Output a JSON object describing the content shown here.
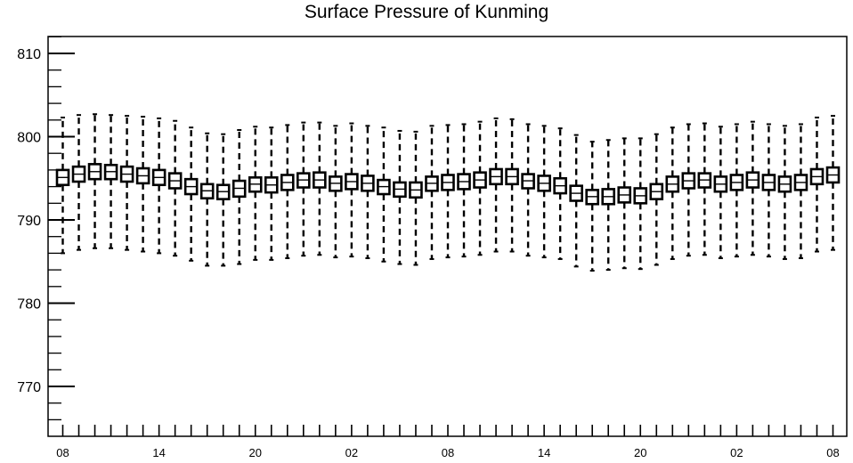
{
  "chart_data": {
    "type": "boxplot",
    "title": "Surface Pressure of Kunming",
    "xlabel": "",
    "ylabel": "",
    "ylim": [
      765,
      812
    ],
    "yticks": [
      770,
      780,
      790,
      800,
      810
    ],
    "grid": false,
    "x_tick_labels": [
      "08",
      "14",
      "20",
      "02",
      "08",
      "14",
      "20",
      "02",
      "08"
    ],
    "x_tick_every": 6,
    "boxes": [
      {
        "x": 0,
        "q1": 794.2,
        "median": 795.1,
        "q3": 796.0,
        "whisker_low": 786.0,
        "whisker_high": 802.3
      },
      {
        "x": 1,
        "q1": 794.6,
        "median": 795.5,
        "q3": 796.4,
        "whisker_low": 786.4,
        "whisker_high": 802.6
      },
      {
        "x": 2,
        "q1": 794.9,
        "median": 795.8,
        "q3": 796.7,
        "whisker_low": 786.6,
        "whisker_high": 802.7
      },
      {
        "x": 3,
        "q1": 794.9,
        "median": 795.8,
        "q3": 796.6,
        "whisker_low": 786.6,
        "whisker_high": 802.6
      },
      {
        "x": 4,
        "q1": 794.6,
        "median": 795.5,
        "q3": 796.4,
        "whisker_low": 786.4,
        "whisker_high": 802.5
      },
      {
        "x": 5,
        "q1": 794.4,
        "median": 795.3,
        "q3": 796.2,
        "whisker_low": 786.2,
        "whisker_high": 802.4
      },
      {
        "x": 6,
        "q1": 794.2,
        "median": 795.1,
        "q3": 796.0,
        "whisker_low": 786.0,
        "whisker_high": 802.2
      },
      {
        "x": 7,
        "q1": 793.8,
        "median": 794.7,
        "q3": 795.6,
        "whisker_low": 785.7,
        "whisker_high": 801.9
      },
      {
        "x": 8,
        "q1": 793.1,
        "median": 794.0,
        "q3": 794.9,
        "whisker_low": 785.1,
        "whisker_high": 801.1
      },
      {
        "x": 9,
        "q1": 792.6,
        "median": 793.5,
        "q3": 794.3,
        "whisker_low": 784.5,
        "whisker_high": 800.4
      },
      {
        "x": 10,
        "q1": 792.5,
        "median": 793.4,
        "q3": 794.2,
        "whisker_low": 784.5,
        "whisker_high": 800.3
      },
      {
        "x": 11,
        "q1": 792.8,
        "median": 793.8,
        "q3": 794.7,
        "whisker_low": 784.7,
        "whisker_high": 800.8
      },
      {
        "x": 12,
        "q1": 793.4,
        "median": 794.3,
        "q3": 795.1,
        "whisker_low": 785.2,
        "whisker_high": 801.2
      },
      {
        "x": 13,
        "q1": 793.3,
        "median": 794.2,
        "q3": 795.1,
        "whisker_low": 785.2,
        "whisker_high": 801.1
      },
      {
        "x": 14,
        "q1": 793.6,
        "median": 794.5,
        "q3": 795.4,
        "whisker_low": 785.4,
        "whisker_high": 801.4
      },
      {
        "x": 15,
        "q1": 793.9,
        "median": 794.8,
        "q3": 795.6,
        "whisker_low": 785.7,
        "whisker_high": 801.7
      },
      {
        "x": 16,
        "q1": 793.9,
        "median": 794.8,
        "q3": 795.7,
        "whisker_low": 785.8,
        "whisker_high": 801.7
      },
      {
        "x": 17,
        "q1": 793.5,
        "median": 794.4,
        "q3": 795.2,
        "whisker_low": 785.5,
        "whisker_high": 801.3
      },
      {
        "x": 18,
        "q1": 793.7,
        "median": 794.6,
        "q3": 795.5,
        "whisker_low": 785.6,
        "whisker_high": 801.6
      },
      {
        "x": 19,
        "q1": 793.5,
        "median": 794.4,
        "q3": 795.3,
        "whisker_low": 785.4,
        "whisker_high": 801.3
      },
      {
        "x": 20,
        "q1": 793.1,
        "median": 794.0,
        "q3": 794.8,
        "whisker_low": 785.0,
        "whisker_high": 801.1
      },
      {
        "x": 21,
        "q1": 792.8,
        "median": 793.7,
        "q3": 794.5,
        "whisker_low": 784.7,
        "whisker_high": 800.7
      },
      {
        "x": 22,
        "q1": 792.7,
        "median": 793.6,
        "q3": 794.5,
        "whisker_low": 784.6,
        "whisker_high": 800.6
      },
      {
        "x": 23,
        "q1": 793.5,
        "median": 794.4,
        "q3": 795.2,
        "whisker_low": 785.3,
        "whisker_high": 801.3
      },
      {
        "x": 24,
        "q1": 793.6,
        "median": 794.5,
        "q3": 795.4,
        "whisker_low": 785.5,
        "whisker_high": 801.4
      },
      {
        "x": 25,
        "q1": 793.7,
        "median": 794.6,
        "q3": 795.5,
        "whisker_low": 785.6,
        "whisker_high": 801.5
      },
      {
        "x": 26,
        "q1": 793.9,
        "median": 794.8,
        "q3": 795.7,
        "whisker_low": 785.8,
        "whisker_high": 801.8
      },
      {
        "x": 27,
        "q1": 794.3,
        "median": 795.2,
        "q3": 796.1,
        "whisker_low": 786.2,
        "whisker_high": 802.2
      },
      {
        "x": 28,
        "q1": 794.3,
        "median": 795.2,
        "q3": 796.1,
        "whisker_low": 786.2,
        "whisker_high": 802.1
      },
      {
        "x": 29,
        "q1": 793.8,
        "median": 794.7,
        "q3": 795.5,
        "whisker_low": 785.7,
        "whisker_high": 801.5
      },
      {
        "x": 30,
        "q1": 793.5,
        "median": 794.4,
        "q3": 795.3,
        "whisker_low": 785.5,
        "whisker_high": 801.3
      },
      {
        "x": 31,
        "q1": 793.2,
        "median": 794.1,
        "q3": 795.0,
        "whisker_low": 785.3,
        "whisker_high": 801.0
      },
      {
        "x": 32,
        "q1": 792.3,
        "median": 793.2,
        "q3": 794.1,
        "whisker_low": 784.4,
        "whisker_high": 800.2
      },
      {
        "x": 33,
        "q1": 791.9,
        "median": 792.8,
        "q3": 793.6,
        "whisker_low": 783.9,
        "whisker_high": 799.4
      },
      {
        "x": 34,
        "q1": 791.9,
        "median": 792.8,
        "q3": 793.7,
        "whisker_low": 784.0,
        "whisker_high": 799.6
      },
      {
        "x": 35,
        "q1": 792.1,
        "median": 793.0,
        "q3": 793.9,
        "whisker_low": 784.2,
        "whisker_high": 799.8
      },
      {
        "x": 36,
        "q1": 792.0,
        "median": 792.9,
        "q3": 793.8,
        "whisker_low": 784.1,
        "whisker_high": 799.8
      },
      {
        "x": 37,
        "q1": 792.5,
        "median": 793.4,
        "q3": 794.3,
        "whisker_low": 784.6,
        "whisker_high": 800.3
      },
      {
        "x": 38,
        "q1": 793.4,
        "median": 794.3,
        "q3": 795.2,
        "whisker_low": 785.3,
        "whisker_high": 801.1
      },
      {
        "x": 39,
        "q1": 793.8,
        "median": 794.7,
        "q3": 795.6,
        "whisker_low": 785.7,
        "whisker_high": 801.5
      },
      {
        "x": 40,
        "q1": 793.9,
        "median": 794.8,
        "q3": 795.6,
        "whisker_low": 785.8,
        "whisker_high": 801.6
      },
      {
        "x": 41,
        "q1": 793.4,
        "median": 794.3,
        "q3": 795.2,
        "whisker_low": 785.4,
        "whisker_high": 801.2
      },
      {
        "x": 42,
        "q1": 793.6,
        "median": 794.5,
        "q3": 795.4,
        "whisker_low": 785.6,
        "whisker_high": 801.5
      },
      {
        "x": 43,
        "q1": 793.9,
        "median": 794.8,
        "q3": 795.7,
        "whisker_low": 785.8,
        "whisker_high": 801.8
      },
      {
        "x": 44,
        "q1": 793.6,
        "median": 794.5,
        "q3": 795.4,
        "whisker_low": 785.6,
        "whisker_high": 801.5
      },
      {
        "x": 45,
        "q1": 793.4,
        "median": 794.3,
        "q3": 795.2,
        "whisker_low": 785.3,
        "whisker_high": 801.3
      },
      {
        "x": 46,
        "q1": 793.6,
        "median": 794.5,
        "q3": 795.4,
        "whisker_low": 785.4,
        "whisker_high": 801.5
      },
      {
        "x": 47,
        "q1": 794.3,
        "median": 795.2,
        "q3": 796.1,
        "whisker_low": 786.2,
        "whisker_high": 802.3
      },
      {
        "x": 48,
        "q1": 794.5,
        "median": 795.4,
        "q3": 796.3,
        "whisker_low": 786.4,
        "whisker_high": 802.5
      }
    ]
  }
}
